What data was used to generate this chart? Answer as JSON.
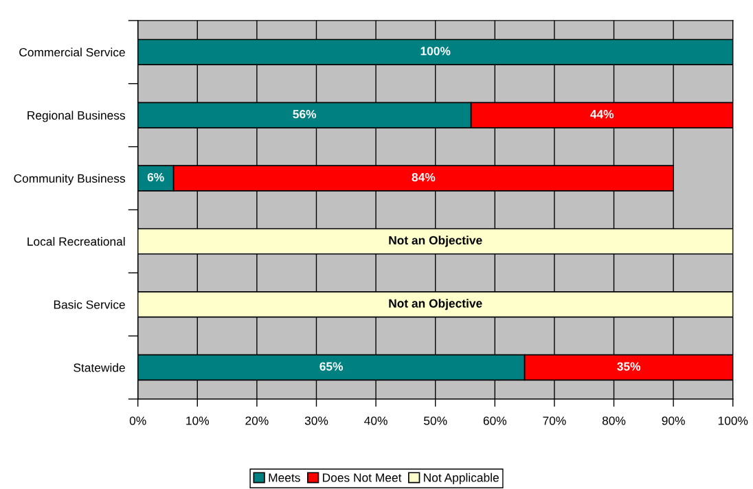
{
  "chart_data": {
    "type": "bar",
    "orientation": "horizontal",
    "stacked": true,
    "categories": [
      "Commercial Service",
      "Regional Business",
      "Community Business",
      "Local Recreational",
      "Basic Service",
      "Statewide"
    ],
    "series": [
      {
        "name": "Meets",
        "color": "#008080",
        "values": [
          100,
          56,
          6,
          null,
          null,
          65
        ],
        "value_labels": [
          "100%",
          "56%",
          "6%",
          null,
          null,
          "65%"
        ]
      },
      {
        "name": "Does Not Meet",
        "color": "#ff0000",
        "values": [
          null,
          44,
          84,
          null,
          null,
          35
        ],
        "value_labels": [
          null,
          "44%",
          "84%",
          null,
          null,
          "35%"
        ]
      },
      {
        "name": "Not Applicable",
        "color": "#ffffcc",
        "values": [
          null,
          null,
          null,
          100,
          100,
          null
        ],
        "value_labels": [
          null,
          null,
          null,
          "Not an Objective",
          "Not an Objective",
          null
        ]
      }
    ],
    "xlim": [
      0,
      100
    ],
    "xticks": [
      {
        "value": 0,
        "label": "0%"
      },
      {
        "value": 10,
        "label": "10%"
      },
      {
        "value": 20,
        "label": "20%"
      },
      {
        "value": 30,
        "label": "30%"
      },
      {
        "value": 40,
        "label": "40%"
      },
      {
        "value": 50,
        "label": "50%"
      },
      {
        "value": 60,
        "label": "60%"
      },
      {
        "value": 70,
        "label": "70%"
      },
      {
        "value": 80,
        "label": "80%"
      },
      {
        "value": 90,
        "label": "90%"
      },
      {
        "value": 100,
        "label": "100%"
      }
    ],
    "grid": "x",
    "legend": "bottom"
  }
}
